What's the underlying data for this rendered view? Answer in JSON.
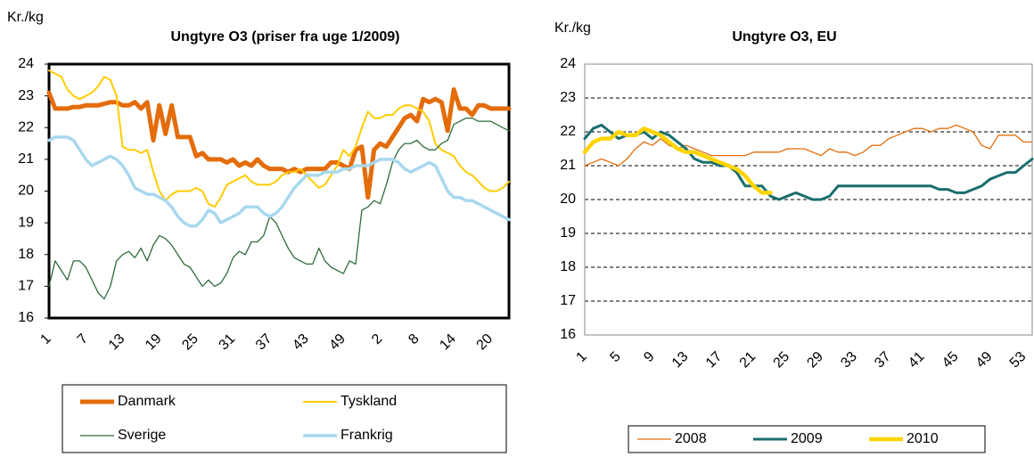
{
  "chart_data": [
    {
      "type": "line",
      "title": "Ungtyre O3 (priser fra uge 1/2009)",
      "ylabel": "Kr./kg",
      "categories": [
        1,
        null,
        null,
        null,
        null,
        null,
        7,
        null,
        null,
        null,
        null,
        null,
        13,
        null,
        null,
        null,
        null,
        null,
        19,
        null,
        null,
        null,
        null,
        null,
        25,
        null,
        null,
        null,
        null,
        null,
        31,
        null,
        null,
        null,
        null,
        null,
        37,
        null,
        null,
        null,
        null,
        null,
        43,
        null,
        null,
        null,
        null,
        null,
        49,
        null,
        null,
        null,
        null,
        null,
        2,
        null,
        null,
        null,
        null,
        null,
        8,
        null,
        null,
        null,
        null,
        null,
        14,
        null,
        null,
        null,
        null,
        null,
        20,
        null,
        null,
        null
      ],
      "ylim": [
        16,
        24
      ],
      "yticks": [
        16,
        17,
        18,
        19,
        20,
        21,
        22,
        23,
        24
      ],
      "grid": false,
      "legend": "bottom",
      "series": [
        {
          "name": "Danmark",
          "color": "#e46c0a",
          "values": [
            23.1,
            22.6,
            22.6,
            22.6,
            22.65,
            22.65,
            22.7,
            22.7,
            22.7,
            22.75,
            22.8,
            22.8,
            22.7,
            22.7,
            22.8,
            22.6,
            22.8,
            21.6,
            22.7,
            21.8,
            22.7,
            21.7,
            21.7,
            21.7,
            21.1,
            21.2,
            21.0,
            21.0,
            21.0,
            20.9,
            21.0,
            20.8,
            20.9,
            20.8,
            21.0,
            20.8,
            20.7,
            20.7,
            20.7,
            20.6,
            20.7,
            20.6,
            20.7,
            20.7,
            20.7,
            20.7,
            20.9,
            20.9,
            20.8,
            20.7,
            21.3,
            21.4,
            19.8,
            21.3,
            21.5,
            21.4,
            21.7,
            22.0,
            22.3,
            22.4,
            22.2,
            22.9,
            22.8,
            22.9,
            22.8,
            21.9,
            23.2,
            22.6,
            22.6,
            22.4,
            22.7,
            22.7,
            22.6,
            22.6,
            22.6,
            22.6
          ]
        },
        {
          "name": "Tyskland",
          "color": "#ffcc00",
          "values": [
            23.8,
            23.7,
            23.6,
            23.2,
            23.0,
            22.9,
            23.0,
            23.1,
            23.3,
            23.6,
            23.5,
            23.0,
            21.4,
            21.3,
            21.3,
            21.2,
            21.3,
            20.6,
            20.0,
            19.7,
            19.9,
            20.0,
            20.0,
            20.0,
            20.1,
            20.0,
            19.6,
            19.5,
            19.8,
            20.2,
            20.3,
            20.4,
            20.5,
            20.3,
            20.2,
            20.2,
            20.2,
            20.3,
            20.5,
            20.6,
            20.6,
            20.7,
            20.5,
            20.3,
            20.1,
            20.2,
            20.5,
            20.8,
            21.3,
            21.1,
            21.4,
            22.0,
            22.5,
            22.3,
            22.3,
            22.4,
            22.4,
            22.6,
            22.7,
            22.7,
            22.6,
            22.5,
            22.2,
            21.5,
            21.3,
            21.2,
            21.1,
            20.8,
            20.6,
            20.5,
            20.3,
            20.1,
            20.0,
            20.0,
            20.1,
            20.3
          ]
        },
        {
          "name": "Sverige",
          "color": "#2e6b3a",
          "values": [
            17.0,
            17.8,
            17.5,
            17.2,
            17.8,
            17.8,
            17.6,
            17.2,
            16.8,
            16.6,
            17.0,
            17.8,
            18.0,
            18.1,
            17.9,
            18.2,
            17.8,
            18.3,
            18.6,
            18.5,
            18.3,
            18.0,
            17.7,
            17.6,
            17.3,
            17.0,
            17.2,
            17.0,
            17.1,
            17.4,
            17.9,
            18.1,
            18.0,
            18.4,
            18.4,
            18.6,
            19.2,
            19.0,
            18.6,
            18.2,
            17.9,
            17.8,
            17.7,
            17.7,
            18.2,
            17.8,
            17.6,
            17.5,
            17.4,
            17.8,
            17.7,
            19.4,
            19.5,
            19.7,
            19.6,
            20.2,
            20.9,
            21.3,
            21.5,
            21.5,
            21.6,
            21.4,
            21.3,
            21.3,
            21.5,
            21.6,
            22.1,
            22.2,
            22.3,
            22.3,
            22.2,
            22.2,
            22.2,
            22.1,
            22.0,
            21.9
          ]
        },
        {
          "name": "Frankrig",
          "color": "#a8d8f0",
          "values": [
            21.6,
            21.7,
            21.7,
            21.7,
            21.6,
            21.3,
            21.0,
            20.8,
            20.9,
            21.0,
            21.1,
            21.0,
            20.8,
            20.5,
            20.1,
            20.0,
            19.9,
            19.9,
            19.8,
            19.7,
            19.5,
            19.2,
            19.0,
            18.9,
            18.9,
            19.1,
            19.4,
            19.3,
            19.0,
            19.1,
            19.2,
            19.3,
            19.5,
            19.5,
            19.5,
            19.3,
            19.2,
            19.3,
            19.5,
            19.8,
            20.1,
            20.3,
            20.5,
            20.5,
            20.5,
            20.6,
            20.6,
            20.6,
            20.7,
            20.7,
            20.8,
            20.8,
            20.8,
            20.9,
            21.0,
            21.0,
            21.0,
            20.9,
            20.7,
            20.6,
            20.7,
            20.8,
            20.9,
            20.8,
            20.4,
            20.0,
            19.8,
            19.8,
            19.7,
            19.7,
            19.6,
            19.5,
            19.4,
            19.3,
            19.2,
            19.1
          ]
        }
      ]
    },
    {
      "type": "line",
      "title": "Ungtyre O3, EU",
      "ylabel": "Kr./kg",
      "categories": [
        1,
        null,
        null,
        null,
        5,
        null,
        null,
        null,
        9,
        null,
        null,
        null,
        13,
        null,
        null,
        null,
        17,
        null,
        null,
        null,
        21,
        null,
        null,
        null,
        25,
        null,
        null,
        null,
        29,
        null,
        null,
        null,
        33,
        null,
        null,
        null,
        37,
        null,
        null,
        null,
        41,
        null,
        null,
        null,
        45,
        null,
        null,
        null,
        49,
        null,
        null,
        null,
        53,
        null
      ],
      "ylim": [
        16,
        24
      ],
      "yticks": [
        16,
        17,
        18,
        19,
        20,
        21,
        22,
        23,
        24
      ],
      "grid": true,
      "legend": "bottom",
      "series": [
        {
          "name": "2008",
          "color": "#e46c0a",
          "values": [
            21.0,
            21.1,
            21.2,
            21.1,
            21.0,
            21.2,
            21.5,
            21.7,
            21.6,
            21.8,
            21.6,
            21.5,
            21.6,
            21.5,
            21.4,
            21.3,
            21.3,
            21.3,
            21.3,
            21.3,
            21.4,
            21.4,
            21.4,
            21.4,
            21.5,
            21.5,
            21.5,
            21.4,
            21.3,
            21.5,
            21.4,
            21.4,
            21.3,
            21.4,
            21.6,
            21.6,
            21.8,
            21.9,
            22.0,
            22.1,
            22.1,
            22.0,
            22.1,
            22.1,
            22.2,
            22.1,
            22.0,
            21.6,
            21.5,
            21.9,
            21.9,
            21.9,
            21.7,
            21.7
          ]
        },
        {
          "name": "2009",
          "color": "#1b6e6e",
          "values": [
            21.8,
            22.1,
            22.2,
            22.0,
            21.8,
            21.9,
            21.9,
            22.0,
            21.8,
            22.0,
            21.9,
            21.7,
            21.5,
            21.2,
            21.1,
            21.1,
            21.0,
            21.0,
            20.8,
            20.4,
            20.4,
            20.4,
            20.1,
            20.0,
            20.1,
            20.2,
            20.1,
            20.0,
            20.0,
            20.1,
            20.4,
            20.4,
            20.4,
            20.4,
            20.4,
            20.4,
            20.4,
            20.4,
            20.4,
            20.4,
            20.4,
            20.4,
            20.3,
            20.3,
            20.2,
            20.2,
            20.3,
            20.4,
            20.6,
            20.7,
            20.8,
            20.8,
            21.0,
            21.2
          ]
        },
        {
          "name": "2010",
          "color": "#ffd400",
          "values": [
            21.4,
            21.7,
            21.8,
            21.8,
            22.0,
            21.9,
            21.9,
            22.1,
            22.0,
            21.9,
            21.7,
            21.5,
            21.4,
            21.4,
            21.3,
            21.2,
            21.1,
            21.0,
            20.9,
            20.7,
            20.4,
            20.2,
            20.2,
            null,
            null,
            null,
            null,
            null,
            null,
            null,
            null,
            null,
            null,
            null,
            null,
            null,
            null,
            null,
            null,
            null,
            null,
            null,
            null,
            null,
            null,
            null,
            null,
            null,
            null,
            null,
            null,
            null,
            null,
            null
          ]
        }
      ]
    }
  ]
}
